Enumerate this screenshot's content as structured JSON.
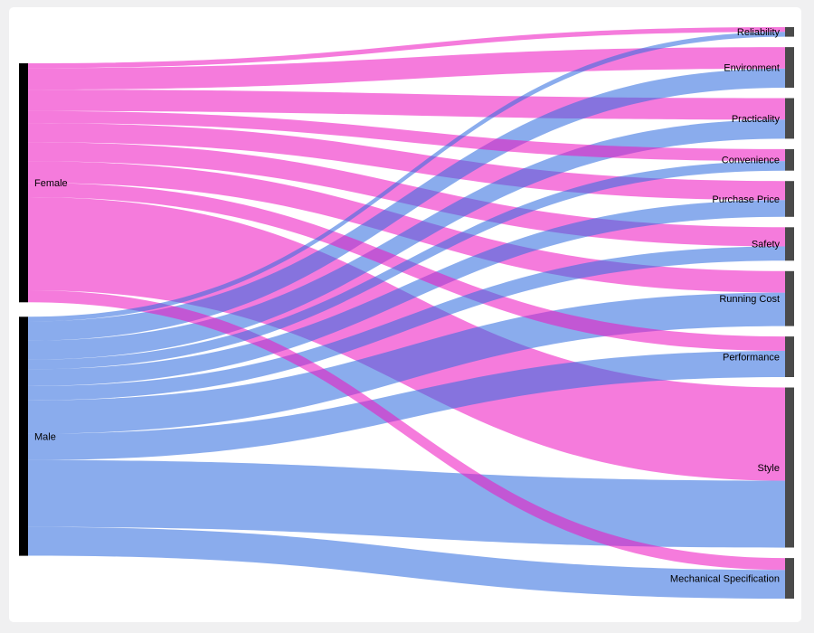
{
  "chart_data": {
    "type": "sankey",
    "title": "",
    "legend": "none",
    "sources": [
      "Female",
      "Male"
    ],
    "targets": [
      "Reliability",
      "Environment",
      "Practicality",
      "Convenience",
      "Purchase Price",
      "Safety",
      "Running Cost",
      "Performance",
      "Style",
      "Mechanical Specification"
    ],
    "links": [
      {
        "source": "Female",
        "target": "Reliability",
        "value": 2
      },
      {
        "source": "Female",
        "target": "Environment",
        "value": 9
      },
      {
        "source": "Female",
        "target": "Practicality",
        "value": 9
      },
      {
        "source": "Female",
        "target": "Convenience",
        "value": 5
      },
      {
        "source": "Female",
        "target": "Purchase Price",
        "value": 8
      },
      {
        "source": "Female",
        "target": "Safety",
        "value": 8
      },
      {
        "source": "Female",
        "target": "Running Cost",
        "value": 9
      },
      {
        "source": "Female",
        "target": "Performance",
        "value": 6
      },
      {
        "source": "Female",
        "target": "Style",
        "value": 39
      },
      {
        "source": "Female",
        "target": "Mechanical Specification",
        "value": 5
      },
      {
        "source": "Male",
        "target": "Reliability",
        "value": 2
      },
      {
        "source": "Male",
        "target": "Environment",
        "value": 8
      },
      {
        "source": "Male",
        "target": "Practicality",
        "value": 8
      },
      {
        "source": "Male",
        "target": "Convenience",
        "value": 4
      },
      {
        "source": "Male",
        "target": "Purchase Price",
        "value": 7
      },
      {
        "source": "Male",
        "target": "Safety",
        "value": 6
      },
      {
        "source": "Male",
        "target": "Running Cost",
        "value": 14
      },
      {
        "source": "Male",
        "target": "Performance",
        "value": 11
      },
      {
        "source": "Male",
        "target": "Style",
        "value": 28
      },
      {
        "source": "Male",
        "target": "Mechanical Specification",
        "value": 12
      }
    ],
    "colors": {
      "female_flow": "#EE17C2",
      "male_flow": "#326DDF",
      "flow_opacity": 0.57,
      "source_node": "#000000",
      "target_node": "#4A4A4A",
      "label_color": "#000000",
      "canvas_bg": "#FFFFFF",
      "page_bg": "#F0F0F1"
    }
  }
}
